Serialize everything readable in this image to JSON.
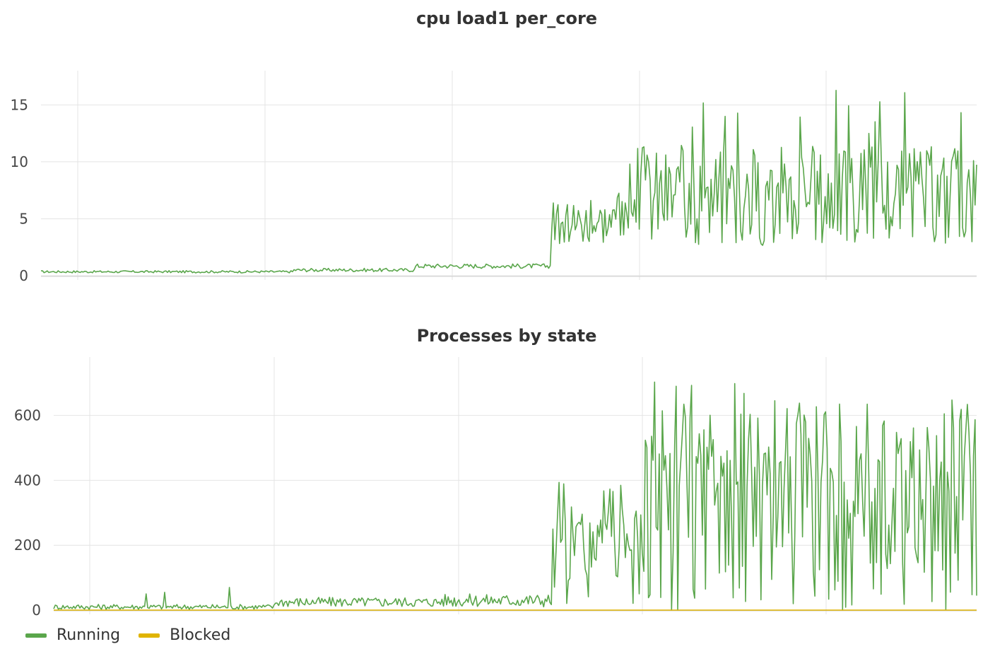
{
  "chart_data": [
    {
      "type": "line",
      "title": "cpu load1 per_core",
      "xlabel": "",
      "ylabel": "",
      "ylim": [
        0,
        18
      ],
      "yticks": [
        0,
        5,
        10,
        15
      ],
      "grid": true,
      "x_points": 600,
      "series": [
        {
          "color": "#5aa64b",
          "segments": [
            {
              "from": 0.0,
              "to": 0.27,
              "base": 0.35,
              "amp": 0.1
            },
            {
              "from": 0.27,
              "to": 0.4,
              "base": 0.5,
              "amp": 0.15
            },
            {
              "from": 0.4,
              "to": 0.5,
              "base": 0.85,
              "amp": 0.2
            },
            {
              "from": 0.5,
              "to": 0.545,
              "base": 0.85,
              "amp": 0.2
            },
            {
              "from": 0.545,
              "to": 0.635,
              "base": 4.8,
              "amp": 2.0,
              "peak": 10.0
            },
            {
              "from": 0.635,
              "to": 1.0,
              "base": 7.0,
              "amp": 4.5,
              "peak": 16.5
            }
          ]
        }
      ]
    },
    {
      "type": "line",
      "title": "Processes by state",
      "xlabel": "",
      "ylabel": "",
      "ylim": [
        0,
        780
      ],
      "yticks": [
        0,
        200,
        400,
        600
      ],
      "grid": true,
      "x_points": 600,
      "series": [
        {
          "name": "Running",
          "color": "#5aa64b",
          "segments": [
            {
              "from": 0.0,
              "to": 0.24,
              "base": 10,
              "amp": 8,
              "spikes": [
                0.1,
                0.12,
                0.19
              ],
              "spike_values": [
                50,
                55,
                70
              ]
            },
            {
              "from": 0.24,
              "to": 0.42,
              "base": 25,
              "amp": 15
            },
            {
              "from": 0.42,
              "to": 0.54,
              "base": 30,
              "amp": 20
            },
            {
              "from": 0.54,
              "to": 0.64,
              "base": 180,
              "amp": 160,
              "peak": 400
            },
            {
              "from": 0.64,
              "to": 1.0,
              "base": 320,
              "amp": 330,
              "peak": 710
            }
          ]
        },
        {
          "name": "Blocked",
          "color": "#e0b400",
          "values_constant": 0
        }
      ]
    }
  ],
  "legend": [
    {
      "name": "Running",
      "color": "#5aa64b"
    },
    {
      "name": "Blocked",
      "color": "#e0b400"
    }
  ]
}
